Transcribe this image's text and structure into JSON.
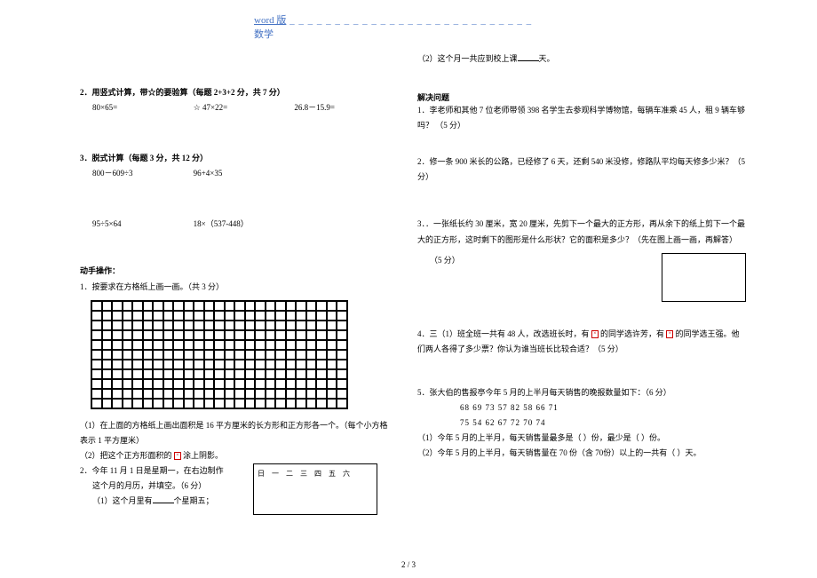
{
  "header": {
    "word": "word 版",
    "math": "数学"
  },
  "left": {
    "s2": {
      "title": "2．用竖式计算，带☆的要验算（每题 2+3+2 分，共 7 分）",
      "a": "80×65=",
      "b": "☆ 47×22=",
      "c": "26.8－15.9="
    },
    "s3": {
      "title": "3．脱式计算（每题 3 分，共 12 分）",
      "a": "800－609÷3",
      "b": "96+4×35",
      "c": "95÷5×64",
      "d": "18×（537-448）"
    },
    "hands": {
      "title": "动手操作：",
      "q1": "1．按要求在方格纸上画一画。（共 3 分）",
      "q1a": "（1）在上面的方格纸上画出面积是 16 平方厘米的长方形和正方形各一个。（每个小方格表示 1 平方厘米）",
      "q1b_pre": "（2）把这个正方形面积的 ",
      "q1b_post": " 涂上阴影。",
      "q2": "2．今年 11 月 1 日是星期一，在右边制作",
      "q2b": "这个月的月历，并填空。（6 分）",
      "q2c_pre": "（1）这个月里有",
      "q2c_post": "个星期五；",
      "cal": "日 一 二 三 四 五 六"
    }
  },
  "right": {
    "top_pre": "（2）这个月一共应到校上课",
    "top_post": "天。",
    "solve": "解决问题",
    "q1": "1．李老师和其他 7 位老师带领 398 名学生去参观科学博物馆，每辆车准乘 45 人，租 9 辆车够吗？  （5 分）",
    "q2": "2．修一条 900 米长的公路，已经修了 6 天，还剩 540 米没修，修路队平均每天修多少米？（5 分）",
    "q3a": "3．．一张纸长约 30 厘米，宽 20 厘米，先剪下一个最大的正方形，再从余下的纸上剪下一个最大的正方形，这时剩下的图形是什么形状？它的面积是多少？（先在图上画一画，再解答）",
    "q3b": "（5 分）",
    "q4a_pre": "4．三（1）班全班一共有 48 人，改选班长时，有 ",
    "q4a_mid": " 的同学选许芳，有 ",
    "q4a_post": " 的同学选王强。他们两人各得了多少票？你认为谁当班长比较合适？（5 分）",
    "q5": "5．张大伯的售报亭今年 5 月的上半月每天销售的晚报数量如下：（6 分）",
    "d1": "68   69   73   57   82   58   66   71",
    "d2": "75   54   62   67   72   70   74",
    "q5a": "（1）今年 5 月的上半月，每天销售量最多是（      ）份，最少是（      ）份。",
    "q5b": "（2）今年 5 月的上半月，每天销售量在 70 份（含 70份）以上的一共有（      ）天。"
  },
  "page": "2 / 3"
}
